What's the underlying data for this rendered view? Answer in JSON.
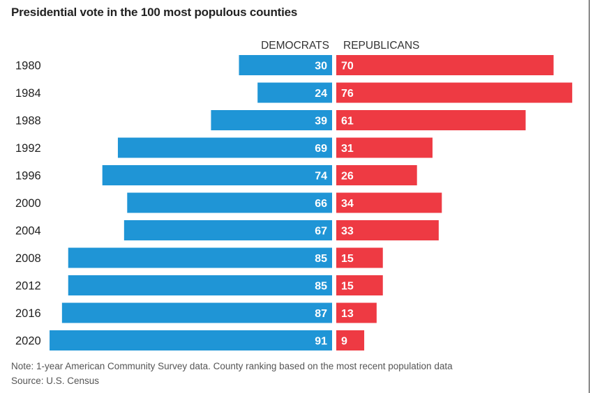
{
  "title": "Presidential vote in the 100 most populous counties",
  "notes": {
    "note": "Note: 1-year American Community Survey data. County ranking based on the most recent population data",
    "source": "Source: U.S. Census"
  },
  "colors": {
    "democrats": "#1f95d6",
    "republicans": "#ee3a43"
  },
  "chart_data": {
    "type": "bar",
    "orientation": "horizontal-diverging",
    "categories": [
      "1980",
      "1984",
      "1988",
      "1992",
      "1996",
      "2000",
      "2004",
      "2008",
      "2012",
      "2016",
      "2020"
    ],
    "series": [
      {
        "name": "DEMOCRATS",
        "values": [
          30,
          24,
          39,
          69,
          74,
          66,
          67,
          85,
          85,
          87,
          91
        ]
      },
      {
        "name": "REPUBLICANS",
        "values": [
          70,
          76,
          61,
          31,
          26,
          34,
          33,
          15,
          15,
          13,
          9
        ]
      }
    ],
    "data_labels": true,
    "grid": false,
    "legend": "column headers"
  }
}
